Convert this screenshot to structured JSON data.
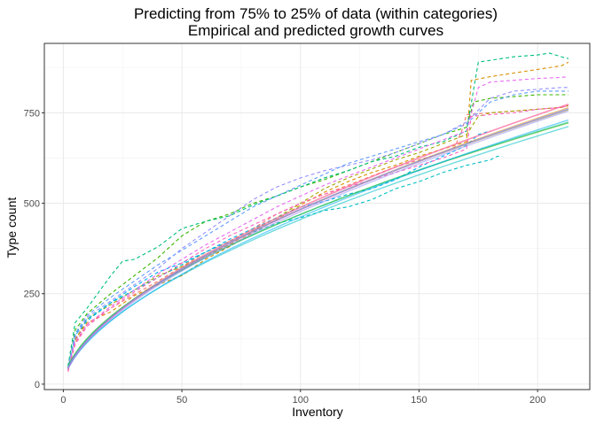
{
  "chart_data": {
    "type": "line",
    "title": "Predicting from 75% to 25% of data (within categories)",
    "subtitle": "Empirical and predicted growth curves",
    "xlabel": "Inventory",
    "ylabel": "Type count",
    "xlim": [
      -8,
      222
    ],
    "ylim": [
      -15,
      942
    ],
    "xticks": [
      0,
      50,
      100,
      150,
      200
    ],
    "yticks": [
      0,
      250,
      500,
      750
    ],
    "x_minor": [
      25,
      75,
      125,
      175
    ],
    "y_minor": [
      125,
      375,
      625,
      875
    ],
    "grid": true,
    "legend": "none",
    "empirical_series": [
      {
        "color": "#F8766D",
        "points": [
          [
            2,
            35
          ],
          [
            5,
            115
          ],
          [
            10,
            165
          ],
          [
            20,
            210
          ],
          [
            30,
            248
          ],
          [
            40,
            285
          ],
          [
            50,
            325
          ],
          [
            60,
            365
          ],
          [
            70,
            395
          ],
          [
            80,
            430
          ],
          [
            90,
            470
          ],
          [
            100,
            500
          ],
          [
            110,
            525
          ],
          [
            120,
            550
          ],
          [
            130,
            575
          ],
          [
            140,
            600
          ],
          [
            150,
            620
          ],
          [
            160,
            640
          ],
          [
            165,
            655
          ],
          [
            168,
            700
          ],
          [
            170,
            745
          ],
          [
            180,
            750
          ],
          [
            190,
            755
          ],
          [
            200,
            760
          ],
          [
            210,
            765
          ],
          [
            213,
            770
          ]
        ]
      },
      {
        "color": "#D89000",
        "points": [
          [
            2,
            40
          ],
          [
            5,
            125
          ],
          [
            10,
            170
          ],
          [
            20,
            200
          ],
          [
            30,
            245
          ],
          [
            40,
            275
          ],
          [
            50,
            300
          ],
          [
            60,
            345
          ],
          [
            70,
            380
          ],
          [
            80,
            420
          ],
          [
            90,
            455
          ],
          [
            100,
            495
          ],
          [
            110,
            530
          ],
          [
            120,
            560
          ],
          [
            130,
            585
          ],
          [
            140,
            605
          ],
          [
            150,
            630
          ],
          [
            160,
            650
          ],
          [
            170,
            670
          ],
          [
            172,
            840
          ],
          [
            180,
            850
          ],
          [
            190,
            860
          ],
          [
            200,
            870
          ],
          [
            210,
            880
          ],
          [
            213,
            890
          ]
        ]
      },
      {
        "color": "#A3A500",
        "points": [
          [
            2,
            38
          ],
          [
            5,
            120
          ],
          [
            10,
            180
          ],
          [
            20,
            220
          ],
          [
            30,
            260
          ],
          [
            40,
            300
          ],
          [
            50,
            325
          ],
          [
            60,
            355
          ],
          [
            70,
            385
          ],
          [
            80,
            425
          ],
          [
            90,
            460
          ],
          [
            100,
            500
          ],
          [
            110,
            540
          ],
          [
            120,
            570
          ],
          [
            130,
            595
          ],
          [
            140,
            620
          ],
          [
            150,
            640
          ],
          [
            160,
            665
          ],
          [
            170,
            690
          ],
          [
            175,
            740
          ],
          [
            180,
            750
          ],
          [
            190,
            755
          ],
          [
            200,
            760
          ],
          [
            210,
            765
          ],
          [
            213,
            770
          ]
        ]
      },
      {
        "color": "#39B600",
        "points": [
          [
            2,
            45
          ],
          [
            5,
            150
          ],
          [
            10,
            195
          ],
          [
            20,
            250
          ],
          [
            30,
            300
          ],
          [
            40,
            350
          ],
          [
            50,
            410
          ],
          [
            60,
            450
          ],
          [
            70,
            470
          ],
          [
            80,
            500
          ],
          [
            90,
            520
          ],
          [
            100,
            545
          ],
          [
            110,
            565
          ],
          [
            120,
            590
          ],
          [
            130,
            615
          ],
          [
            140,
            640
          ],
          [
            150,
            665
          ],
          [
            160,
            690
          ],
          [
            170,
            710
          ],
          [
            173,
            780
          ],
          [
            180,
            790
          ],
          [
            190,
            795
          ],
          [
            200,
            800
          ],
          [
            210,
            800
          ],
          [
            213,
            800
          ]
        ]
      },
      {
        "color": "#00BF7D",
        "points": [
          [
            2,
            50
          ],
          [
            5,
            170
          ],
          [
            10,
            210
          ],
          [
            20,
            300
          ],
          [
            25,
            340
          ],
          [
            30,
            345
          ],
          [
            40,
            380
          ],
          [
            50,
            430
          ],
          [
            60,
            450
          ],
          [
            70,
            465
          ],
          [
            80,
            495
          ],
          [
            90,
            520
          ],
          [
            100,
            545
          ],
          [
            110,
            570
          ],
          [
            120,
            590
          ],
          [
            130,
            615
          ],
          [
            140,
            630
          ],
          [
            150,
            655
          ],
          [
            160,
            670
          ],
          [
            165,
            685
          ],
          [
            170,
            700
          ],
          [
            175,
            890
          ],
          [
            190,
            905
          ],
          [
            200,
            910
          ],
          [
            205,
            915
          ],
          [
            210,
            905
          ],
          [
            213,
            900
          ]
        ]
      },
      {
        "color": "#00BFC4",
        "points": [
          [
            2,
            45
          ],
          [
            5,
            140
          ],
          [
            10,
            180
          ],
          [
            20,
            225
          ],
          [
            30,
            260
          ],
          [
            40,
            295
          ],
          [
            50,
            330
          ],
          [
            60,
            365
          ],
          [
            70,
            395
          ],
          [
            80,
            420
          ],
          [
            90,
            445
          ],
          [
            100,
            460
          ],
          [
            110,
            480
          ],
          [
            120,
            490
          ],
          [
            130,
            510
          ],
          [
            140,
            540
          ],
          [
            150,
            560
          ],
          [
            160,
            585
          ],
          [
            170,
            605
          ],
          [
            180,
            620
          ],
          [
            183,
            630
          ],
          [
            185,
            630
          ]
        ]
      },
      {
        "color": "#00B0F6",
        "points": [
          [
            2,
            40
          ],
          [
            5,
            135
          ],
          [
            10,
            175
          ],
          [
            20,
            225
          ],
          [
            30,
            270
          ],
          [
            40,
            310
          ],
          [
            50,
            335
          ],
          [
            60,
            365
          ],
          [
            70,
            400
          ],
          [
            80,
            430
          ],
          [
            90,
            460
          ],
          [
            100,
            490
          ],
          [
            110,
            505
          ],
          [
            120,
            525
          ],
          [
            130,
            540
          ],
          [
            140,
            565
          ],
          [
            150,
            600
          ],
          [
            160,
            630
          ],
          [
            170,
            660
          ],
          [
            175,
            690
          ],
          [
            180,
            700
          ]
        ]
      },
      {
        "color": "#9590FF",
        "points": [
          [
            2,
            42
          ],
          [
            5,
            130
          ],
          [
            10,
            185
          ],
          [
            20,
            230
          ],
          [
            30,
            275
          ],
          [
            40,
            320
          ],
          [
            50,
            375
          ],
          [
            60,
            420
          ],
          [
            70,
            465
          ],
          [
            80,
            510
          ],
          [
            90,
            545
          ],
          [
            100,
            570
          ],
          [
            110,
            590
          ],
          [
            120,
            605
          ],
          [
            130,
            620
          ],
          [
            140,
            640
          ],
          [
            150,
            665
          ],
          [
            160,
            690
          ],
          [
            170,
            725
          ],
          [
            180,
            790
          ],
          [
            190,
            810
          ],
          [
            200,
            815
          ],
          [
            210,
            820
          ],
          [
            213,
            820
          ]
        ]
      },
      {
        "color": "#E76BF3",
        "points": [
          [
            2,
            40
          ],
          [
            5,
            120
          ],
          [
            10,
            165
          ],
          [
            20,
            215
          ],
          [
            30,
            260
          ],
          [
            40,
            305
          ],
          [
            50,
            345
          ],
          [
            60,
            385
          ],
          [
            70,
            420
          ],
          [
            80,
            455
          ],
          [
            90,
            490
          ],
          [
            100,
            520
          ],
          [
            110,
            550
          ],
          [
            120,
            575
          ],
          [
            130,
            600
          ],
          [
            140,
            625
          ],
          [
            150,
            650
          ],
          [
            160,
            675
          ],
          [
            170,
            700
          ],
          [
            175,
            820
          ],
          [
            180,
            835
          ],
          [
            190,
            840
          ],
          [
            200,
            845
          ],
          [
            210,
            848
          ],
          [
            213,
            850
          ]
        ]
      },
      {
        "color": "#FF62BC",
        "points": [
          [
            2,
            35
          ],
          [
            5,
            110
          ],
          [
            10,
            160
          ],
          [
            20,
            210
          ],
          [
            30,
            255
          ],
          [
            40,
            295
          ],
          [
            50,
            335
          ],
          [
            60,
            375
          ],
          [
            70,
            410
          ],
          [
            80,
            440
          ],
          [
            90,
            470
          ],
          [
            100,
            500
          ],
          [
            110,
            525
          ],
          [
            120,
            545
          ],
          [
            130,
            565
          ],
          [
            140,
            585
          ],
          [
            150,
            605
          ],
          [
            160,
            625
          ],
          [
            170,
            650
          ],
          [
            172,
            740
          ],
          [
            180,
            745
          ],
          [
            190,
            750
          ],
          [
            200,
            760
          ],
          [
            210,
            765
          ],
          [
            213,
            770
          ]
        ]
      },
      {
        "color": "#619CFF",
        "points": [
          [
            2,
            45
          ],
          [
            5,
            140
          ],
          [
            10,
            190
          ],
          [
            20,
            240
          ],
          [
            30,
            285
          ],
          [
            40,
            330
          ],
          [
            50,
            370
          ],
          [
            60,
            410
          ],
          [
            70,
            450
          ],
          [
            80,
            490
          ],
          [
            90,
            520
          ],
          [
            100,
            550
          ],
          [
            110,
            580
          ],
          [
            120,
            610
          ],
          [
            130,
            630
          ],
          [
            140,
            650
          ],
          [
            150,
            670
          ],
          [
            160,
            690
          ],
          [
            170,
            720
          ],
          [
            180,
            780
          ],
          [
            190,
            800
          ],
          [
            200,
            810
          ],
          [
            210,
            810
          ],
          [
            213,
            810
          ]
        ]
      }
    ],
    "predicted_curves": {
      "x_start": 2,
      "x_end": 213,
      "models": [
        {
          "color": "#F8766D",
          "a": 30.2,
          "b": 0.605
        },
        {
          "color": "#D89000",
          "a": 29.5,
          "b": 0.607
        },
        {
          "color": "#A3A500",
          "a": 30.9,
          "b": 0.597
        },
        {
          "color": "#39B600",
          "a": 34.0,
          "b": 0.57
        },
        {
          "color": "#00BF7D",
          "a": 33.2,
          "b": 0.575
        },
        {
          "color": "#00BFC4",
          "a": 29.8,
          "b": 0.592
        },
        {
          "color": "#00B0F6",
          "a": 28.5,
          "b": 0.605
        },
        {
          "color": "#9590FF",
          "a": 29.0,
          "b": 0.608
        },
        {
          "color": "#E76BF3",
          "a": 30.0,
          "b": 0.603
        },
        {
          "color": "#FF62BC",
          "a": 29.4,
          "b": 0.61
        },
        {
          "color": "#619CFF",
          "a": 30.5,
          "b": 0.6
        }
      ]
    }
  }
}
